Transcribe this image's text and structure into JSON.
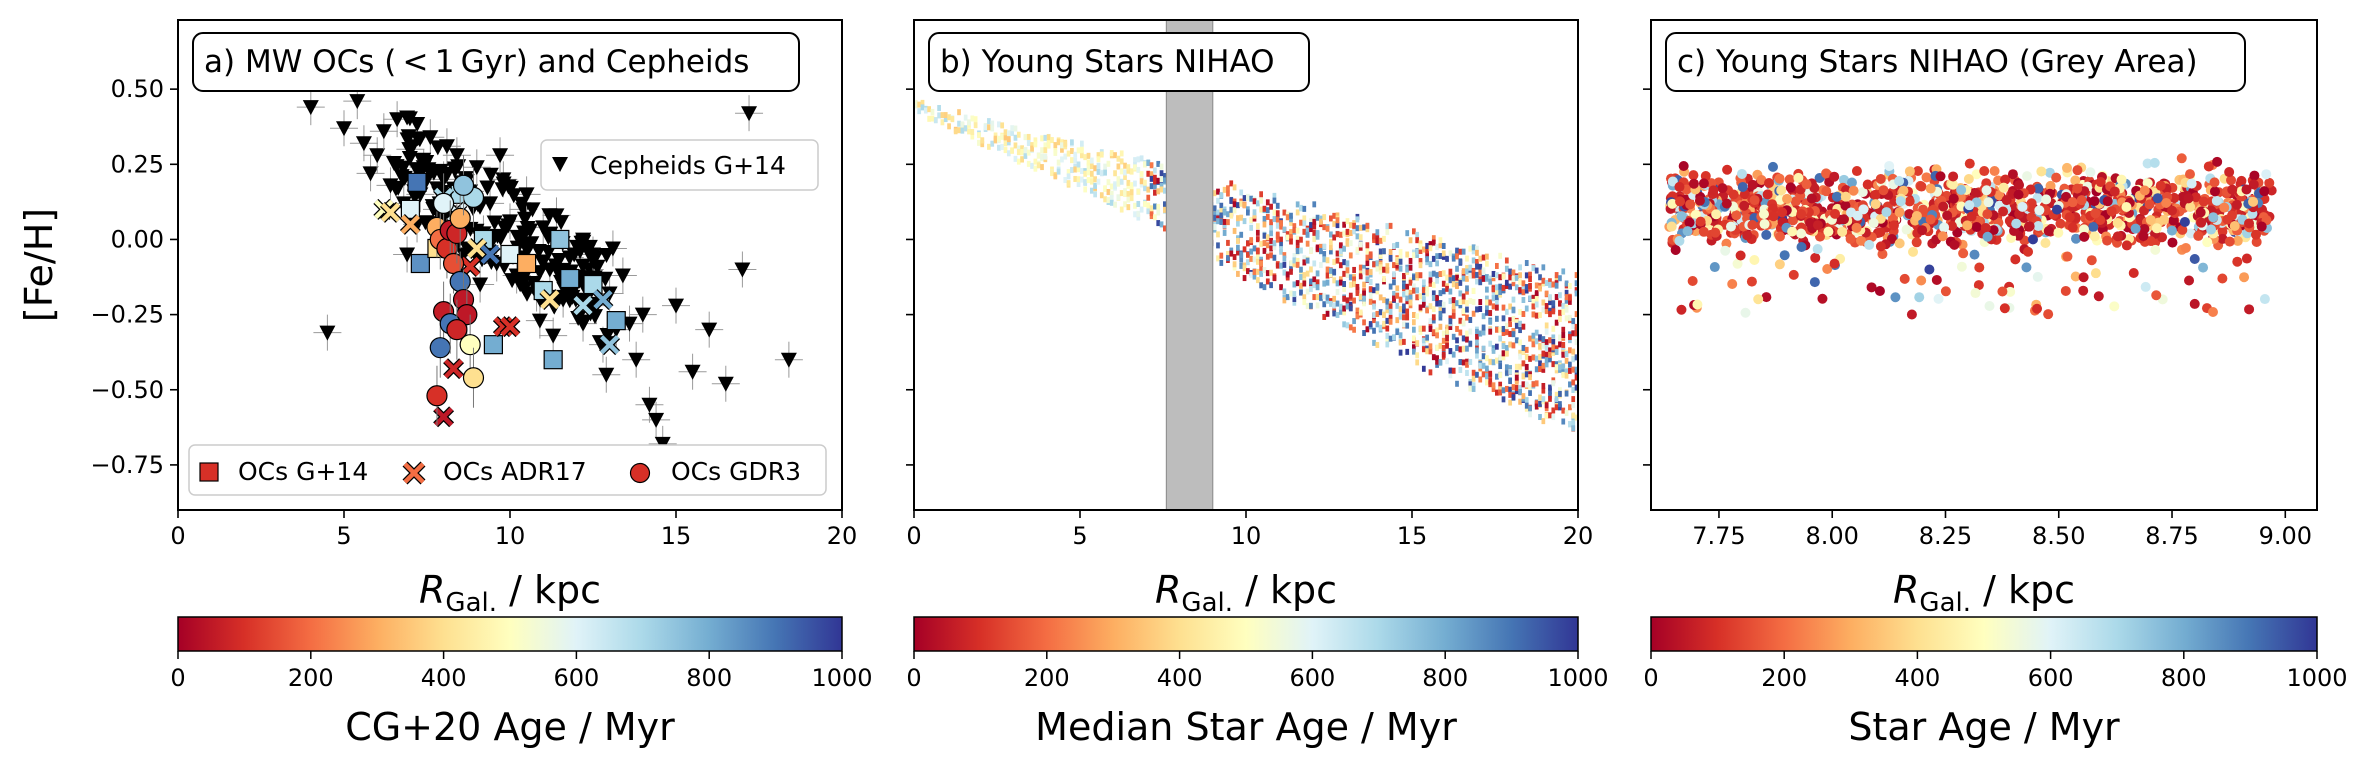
{
  "chart_data": [
    {
      "panel": "a",
      "type": "scatter",
      "title": "a) MW OCs ( < 1 Gyr) and Cepheids",
      "xlabel": "R_Gal. / kpc",
      "ylabel": "[Fe/H]",
      "xlim": [
        0,
        20
      ],
      "ylim": [
        -0.9,
        0.73
      ],
      "xticks": [
        "0",
        "5",
        "10",
        "15",
        "20"
      ],
      "yticks": [
        "0.50",
        "0.25",
        "0.00",
        "−0.25",
        "−0.50",
        "−0.75"
      ],
      "legend_upper": "top-right",
      "legend_lower": "bottom",
      "series": [
        {
          "name": "Cepheids G+14",
          "marker": "triangle-down",
          "color": "#000000",
          "points": [
            [
              4.0,
              0.44
            ],
            [
              4.5,
              -0.31
            ],
            [
              5.0,
              0.37
            ],
            [
              5.4,
              0.46
            ],
            [
              5.6,
              0.32
            ],
            [
              5.8,
              0.22
            ],
            [
              6.0,
              0.28
            ],
            [
              6.2,
              0.36
            ],
            [
              6.4,
              0.18
            ],
            [
              6.6,
              0.4
            ],
            [
              6.8,
              0.12
            ],
            [
              7.0,
              0.3
            ],
            [
              7.2,
              0.05
            ],
            [
              7.4,
              0.24
            ],
            [
              7.6,
              0.34
            ],
            [
              7.8,
              0.1
            ],
            [
              8.0,
              0.2
            ],
            [
              8.2,
              0.03
            ],
            [
              8.4,
              0.28
            ],
            [
              8.6,
              -0.05
            ],
            [
              8.8,
              0.16
            ],
            [
              9.0,
              0.24
            ],
            [
              9.2,
              0.02
            ],
            [
              9.4,
              0.12
            ],
            [
              9.6,
              -0.08
            ],
            [
              9.8,
              0.2
            ],
            [
              10.0,
              0.06
            ],
            [
              10.2,
              -0.12
            ],
            [
              10.4,
              0.1
            ],
            [
              10.6,
              -0.02
            ],
            [
              10.8,
              -0.18
            ],
            [
              11.0,
              0.04
            ],
            [
              11.2,
              -0.1
            ],
            [
              11.4,
              0.08
            ],
            [
              11.6,
              -0.2
            ],
            [
              11.8,
              -0.06
            ],
            [
              12.0,
              -0.15
            ],
            [
              12.2,
              -0.28
            ],
            [
              12.4,
              -0.1
            ],
            [
              12.6,
              -0.22
            ],
            [
              12.8,
              -0.35
            ],
            [
              13.0,
              -0.18
            ],
            [
              13.2,
              -0.3
            ],
            [
              13.4,
              -0.12
            ],
            [
              13.6,
              -0.28
            ],
            [
              13.8,
              -0.4
            ],
            [
              14.0,
              -0.25
            ],
            [
              14.2,
              -0.55
            ],
            [
              14.4,
              -0.6
            ],
            [
              14.6,
              -0.68
            ],
            [
              15.0,
              -0.22
            ],
            [
              15.5,
              -0.44
            ],
            [
              16.0,
              -0.3
            ],
            [
              16.5,
              -0.48
            ],
            [
              17.0,
              -0.1
            ],
            [
              17.2,
              0.42
            ],
            [
              18.4,
              -0.4
            ],
            [
              7.3,
              0.15
            ],
            [
              8.1,
              0.31
            ],
            [
              9.1,
              -0.15
            ],
            [
              10.5,
              0.15
            ],
            [
              11.3,
              -0.32
            ],
            [
              12.5,
              -0.05
            ],
            [
              13.1,
              -0.03
            ],
            [
              6.9,
              -0.05
            ],
            [
              9.7,
              0.28
            ],
            [
              10.9,
              -0.27
            ],
            [
              12.9,
              -0.45
            ]
          ]
        },
        {
          "name": "OCs G+14",
          "marker": "square",
          "points": [
            [
              7.0,
              0.1,
              600
            ],
            [
              7.2,
              0.19,
              900
            ],
            [
              7.3,
              -0.08,
              850
            ],
            [
              8.5,
              0.15,
              700
            ],
            [
              9.2,
              0.0,
              700
            ],
            [
              9.5,
              -0.35,
              800
            ],
            [
              10.0,
              -0.05,
              600
            ],
            [
              10.5,
              -0.08,
              300
            ],
            [
              11.0,
              -0.17,
              700
            ],
            [
              11.3,
              -0.4,
              800
            ],
            [
              11.5,
              0.0,
              750
            ],
            [
              11.8,
              -0.13,
              800
            ],
            [
              12.5,
              -0.15,
              700
            ],
            [
              13.2,
              -0.27,
              800
            ],
            [
              7.8,
              -0.03,
              400
            ]
          ]
        },
        {
          "name": "OCs ADR17",
          "marker": "x",
          "points": [
            [
              6.2,
              0.1,
              500
            ],
            [
              6.4,
              0.09,
              400
            ],
            [
              7.0,
              0.05,
              300
            ],
            [
              8.0,
              0.14,
              700
            ],
            [
              8.4,
              0.09,
              600
            ],
            [
              8.8,
              -0.09,
              100
            ],
            [
              9.0,
              -0.03,
              400
            ],
            [
              9.4,
              -0.05,
              900
            ],
            [
              9.8,
              -0.29,
              100
            ],
            [
              10.0,
              -0.29,
              100
            ],
            [
              11.2,
              -0.2,
              400
            ],
            [
              12.2,
              -0.22,
              700
            ],
            [
              12.8,
              -0.2,
              800
            ],
            [
              13.0,
              -0.35,
              750
            ],
            [
              8.3,
              -0.43,
              80
            ],
            [
              8.0,
              -0.59,
              50
            ]
          ]
        },
        {
          "name": "OCs GDR3",
          "marker": "circle",
          "points": [
            [
              7.8,
              0.04,
              300
            ],
            [
              7.9,
              0.0,
              200
            ],
            [
              8.0,
              0.12,
              600
            ],
            [
              8.1,
              -0.03,
              100
            ],
            [
              8.2,
              0.03,
              50
            ],
            [
              8.3,
              -0.08,
              150
            ],
            [
              8.4,
              0.02,
              80
            ],
            [
              8.5,
              -0.14,
              900
            ],
            [
              8.5,
              0.07,
              300
            ],
            [
              8.6,
              -0.2,
              50
            ],
            [
              8.7,
              -0.25,
              50
            ],
            [
              8.8,
              -0.35,
              500
            ],
            [
              8.9,
              -0.46,
              400
            ],
            [
              8.0,
              -0.24,
              60
            ],
            [
              7.9,
              -0.36,
              900
            ],
            [
              7.8,
              -0.52,
              100
            ],
            [
              8.2,
              -0.28,
              900
            ],
            [
              8.4,
              -0.3,
              80
            ],
            [
              8.9,
              0.14,
              700
            ],
            [
              8.6,
              0.18,
              750
            ]
          ]
        }
      ],
      "colorbar": {
        "label": "CG+20 Age / Myr",
        "ticks": [
          "0",
          "200",
          "400",
          "600",
          "800",
          "1000"
        ],
        "range": [
          0,
          1000
        ]
      }
    },
    {
      "panel": "b",
      "type": "heatmap",
      "title": "b) Young Stars NIHAO",
      "xlabel": "R_Gal. / kpc",
      "xlim": [
        0,
        20
      ],
      "xticks": [
        "0",
        "5",
        "10",
        "15",
        "20"
      ],
      "shaded_band": [
        7.6,
        9.0
      ],
      "trend": {
        "r_start": 0,
        "feh_start": 0.45,
        "r_end": 20,
        "feh_end": -0.35
      },
      "colorbar": {
        "label": "Median Star Age / Myr",
        "ticks": [
          "0",
          "200",
          "400",
          "600",
          "800",
          "1000"
        ],
        "range": [
          0,
          1000
        ]
      }
    },
    {
      "panel": "c",
      "type": "scatter",
      "title": "c) Young Stars NIHAO (Grey Area)",
      "xlabel": "R_Gal. / kpc",
      "xlim": [
        7.6,
        9.07
      ],
      "xticks": [
        "7.75",
        "8.00",
        "8.25",
        "8.50",
        "8.75",
        "9.00"
      ],
      "feh_band": [
        -0.28,
        0.28
      ],
      "colorbar": {
        "label": "Star Age / Myr",
        "ticks": [
          "0",
          "200",
          "400",
          "600",
          "800",
          "1000"
        ],
        "range": [
          0,
          1000
        ]
      }
    }
  ],
  "colors": {
    "colormap": [
      "#a50026",
      "#d73027",
      "#f46d43",
      "#fdae61",
      "#fee090",
      "#ffffbf",
      "#e0f3f8",
      "#abd9e9",
      "#74add1",
      "#4575b4",
      "#313695"
    ],
    "shade": "#bdbdbd"
  }
}
